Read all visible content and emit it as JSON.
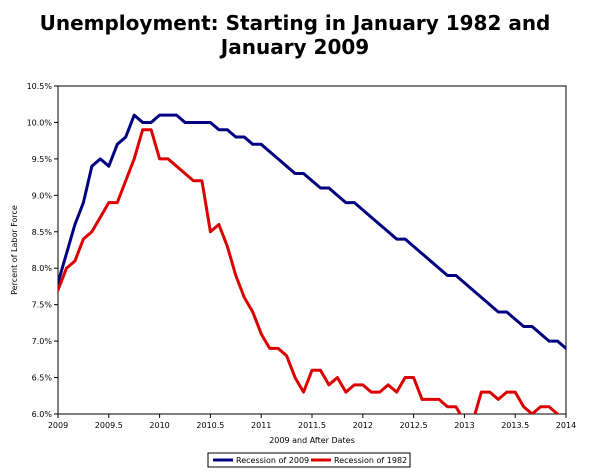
{
  "chart_data": {
    "type": "line",
    "title_lines": [
      "Unemployment: Starting in January 1982 and",
      "January 2009"
    ],
    "xlabel": "2009 and After Dates",
    "ylabel": "Percent of Labor Force",
    "xlim": [
      2009,
      2014
    ],
    "ylim": [
      6.0,
      10.5
    ],
    "xticks": [
      2009,
      2009.5,
      2010,
      2010.5,
      2011,
      2011.5,
      2012,
      2012.5,
      2013,
      2013.5,
      2014
    ],
    "xtick_labels": [
      "2009",
      "2009.5",
      "2010",
      "2010.5",
      "2011",
      "2011.5",
      "2012",
      "2012.5",
      "2013",
      "2013.5",
      "2014"
    ],
    "yticks": [
      6.0,
      6.5,
      7.0,
      7.5,
      8.0,
      8.5,
      9.0,
      9.5,
      10.0,
      10.5
    ],
    "ytick_labels": [
      "6.0%",
      "6.5%",
      "7.0%",
      "7.5%",
      "8.0%",
      "8.5%",
      "9.0%",
      "9.5%",
      "10.0%",
      "10.5%"
    ],
    "grid": false,
    "legend_position": "bottom",
    "x_start": 2009,
    "x_step": 0.0833333,
    "series": [
      {
        "name": "Recession of 2009",
        "color": "#000080",
        "values": [
          7.8,
          8.2,
          8.6,
          8.9,
          9.4,
          9.5,
          9.4,
          9.7,
          9.8,
          10.1,
          10.0,
          10.0,
          10.1,
          10.1,
          10.1,
          10.0,
          10.0,
          10.0,
          10.0,
          9.9,
          9.9,
          9.8,
          9.8,
          9.7,
          9.7,
          9.6,
          9.5,
          9.4,
          9.3,
          9.3,
          9.2,
          9.1,
          9.1,
          9.0,
          8.9,
          8.9,
          8.8,
          8.7,
          8.6,
          8.5,
          8.4,
          8.4,
          8.3,
          8.2,
          8.1,
          8.0,
          7.9,
          7.9,
          7.8,
          7.7,
          7.6,
          7.5,
          7.4,
          7.4,
          7.3,
          7.2,
          7.2,
          7.1,
          7.0,
          7.0,
          6.9
        ]
      },
      {
        "name": "Recession of 1982",
        "color": "#dd0000",
        "values": [
          7.7,
          8.0,
          8.1,
          8.4,
          8.5,
          8.7,
          8.9,
          8.9,
          9.2,
          9.5,
          9.9,
          9.9,
          9.5,
          9.5,
          9.4,
          9.3,
          9.2,
          9.2,
          8.5,
          8.6,
          8.3,
          7.9,
          7.6,
          7.4,
          7.1,
          6.9,
          6.9,
          6.8,
          6.5,
          6.3,
          6.6,
          6.6,
          6.4,
          6.5,
          6.3,
          6.4,
          6.4,
          6.3,
          6.3,
          6.4,
          6.3,
          6.5,
          6.5,
          6.2,
          6.2,
          6.2,
          6.1,
          6.1,
          5.9,
          5.9,
          6.3,
          6.3,
          6.2,
          6.3,
          6.3,
          6.1,
          6.0,
          6.1,
          6.1,
          6.0,
          5.9
        ]
      }
    ]
  }
}
